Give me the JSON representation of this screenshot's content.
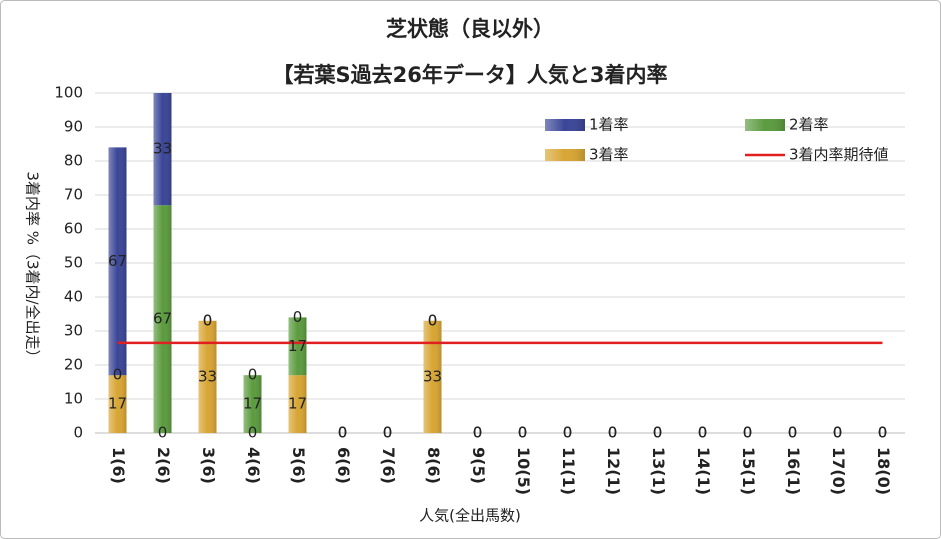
{
  "chart_data": {
    "type": "bar",
    "title": "芝状態（良以外）",
    "subtitle": "【若葉S過去26年データ】人気と3着内率",
    "x_label": "人気(全出馬数)",
    "y_label": "3着内率 %（3着内/全出走）",
    "categories": [
      "1(6)",
      "2(6)",
      "3(6)",
      "4(6)",
      "5(6)",
      "6(6)",
      "7(6)",
      "8(6)",
      "9(5)",
      "10(5)",
      "11(1)",
      "12(1)",
      "13(1)",
      "14(1)",
      "15(1)",
      "16(1)",
      "17(0)",
      "18(0)"
    ],
    "series": [
      {
        "name": "1着率",
        "color": "#3a4597",
        "values": [
          67,
          33,
          0,
          0,
          0,
          0,
          0,
          0,
          0,
          0,
          0,
          0,
          0,
          0,
          0,
          0,
          0,
          0
        ]
      },
      {
        "name": "2着率",
        "color": "#5b9b3e",
        "values": [
          0,
          67,
          0,
          17,
          17,
          0,
          0,
          0,
          0,
          0,
          0,
          0,
          0,
          0,
          0,
          0,
          0,
          0
        ]
      },
      {
        "name": "3着率",
        "color": "#d8a533",
        "values": [
          17,
          0,
          33,
          0,
          17,
          0,
          0,
          33,
          0,
          0,
          0,
          0,
          0,
          0,
          0,
          0,
          0,
          0
        ]
      },
      {
        "name": "3着内率期待値",
        "type": "line",
        "color": "#e02020",
        "values": [
          26.5,
          26.5,
          26.5,
          26.5,
          26.5,
          26.5,
          26.5,
          26.5,
          26.5,
          26.5,
          26.5,
          26.5,
          26.5,
          26.5,
          26.5,
          26.5,
          26.5,
          26.5
        ]
      }
    ],
    "stacked": true,
    "ylim": [
      0,
      100
    ],
    "yticks": [
      0,
      10,
      20,
      30,
      40,
      50,
      60,
      70,
      80,
      90,
      100
    ],
    "grid": true,
    "legend": "top-right"
  }
}
